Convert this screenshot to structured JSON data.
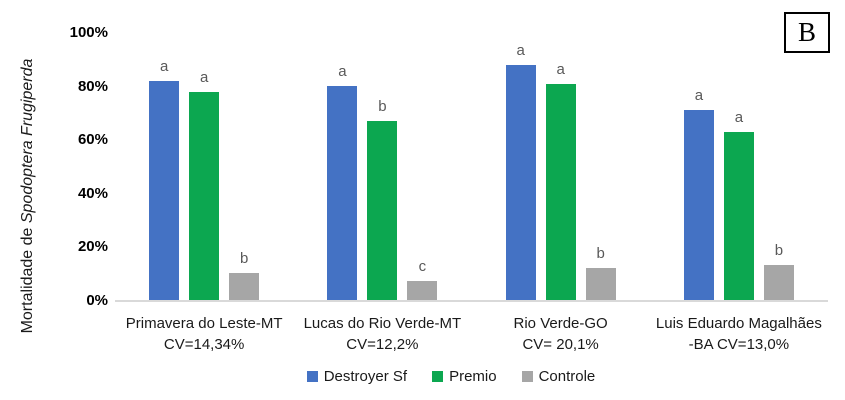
{
  "panel_label": "B",
  "colors": {
    "axis_line": "#D9D9D9",
    "letter_text": "#595959",
    "tick_text": "#000000",
    "label_text": "#1a1a1a"
  },
  "y_axis": {
    "title_prefix": "Mortalidade de ",
    "title_species": "Spodoptera Frugiperda",
    "ticks": [
      "100%",
      "80%",
      "60%",
      "40%",
      "20%",
      "0%"
    ]
  },
  "chart_data": {
    "type": "bar",
    "title": "",
    "xlabel": "",
    "ylabel": "Mortalidade de Spodoptera Frugiperda",
    "ylim": [
      0,
      100
    ],
    "grid": false,
    "legend_position": "bottom",
    "categories": [
      {
        "line1": "Primavera do Leste-MT",
        "line2": "CV=14,34%"
      },
      {
        "line1": "Lucas do Rio Verde-MT",
        "line2": "CV=12,2%"
      },
      {
        "line1": "Rio Verde-GO",
        "line2": "CV= 20,1%"
      },
      {
        "line1": "Luis Eduardo Magalhães",
        "line2": "-BA CV=13,0%"
      }
    ],
    "series": [
      {
        "name": "Destroyer Sf",
        "color": "#4472C4",
        "values": [
          82,
          80,
          88,
          71
        ],
        "letters": [
          "a",
          "a",
          "a",
          "a"
        ]
      },
      {
        "name": "Premio",
        "color": "#0CA750",
        "values": [
          78,
          67,
          81,
          63
        ],
        "letters": [
          "a",
          "b",
          "a",
          "a"
        ]
      },
      {
        "name": "Controle",
        "color": "#A6A6A6",
        "values": [
          10,
          7,
          12,
          13
        ],
        "letters": [
          "b",
          "c",
          "b",
          "b"
        ]
      }
    ]
  }
}
